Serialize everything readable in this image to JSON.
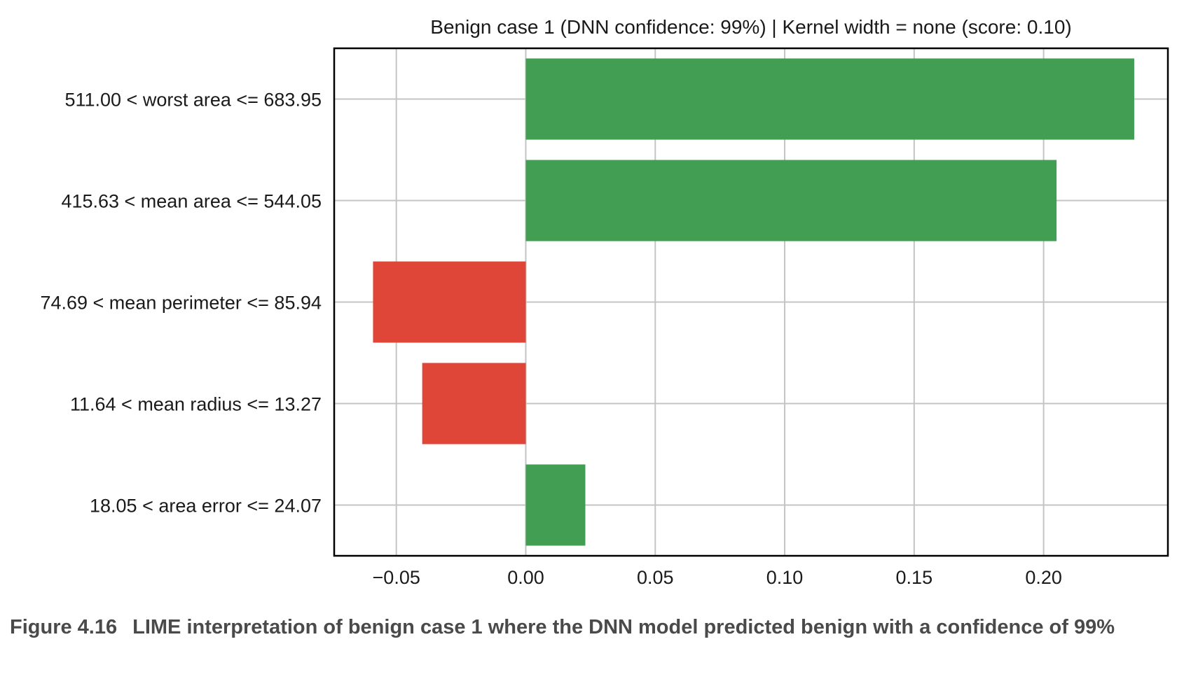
{
  "chart_data": {
    "type": "bar",
    "orientation": "horizontal",
    "title": "Benign case 1 (DNN confidence: 99%) | Kernel width = none (score: 0.10)",
    "xlabel": "",
    "ylabel": "",
    "categories": [
      "511.00 < worst area <= 683.95",
      "415.63 < mean area <= 544.05",
      "74.69 < mean perimeter <= 85.94",
      "11.64 < mean radius <= 13.27",
      "18.05 < area error <= 24.07"
    ],
    "values": [
      0.235,
      0.205,
      -0.059,
      -0.04,
      0.023
    ],
    "xlim": [
      -0.074,
      0.248
    ],
    "xticks": [
      -0.05,
      0.0,
      0.05,
      0.1,
      0.15,
      0.2
    ],
    "xtick_labels": [
      "−0.05",
      "0.00",
      "0.05",
      "0.10",
      "0.15",
      "0.20"
    ],
    "grid": true,
    "colors": {
      "positive": "#419e52",
      "negative": "#df4638",
      "grid": "#c4c4c4",
      "axes": "#000000",
      "text": "#1a1a1a"
    }
  },
  "caption": {
    "label": "Figure 4.16",
    "text": "LIME interpretation of benign case 1 where the DNN model predicted benign with a confidence of 99%"
  }
}
